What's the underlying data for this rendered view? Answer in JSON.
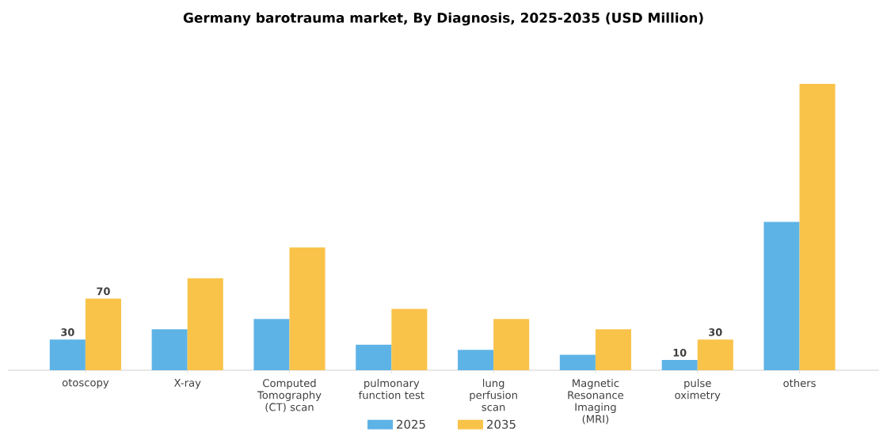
{
  "chart_data": {
    "type": "bar",
    "title": "Germany barotrauma market, By Diagnosis, 2025-2035 (USD Million)",
    "categories": [
      "otoscopy",
      "X-ray",
      "Computed Tomography (CT) scan",
      "pulmonary function test",
      "lung perfusion scan",
      "Magnetic Resonance Imaging (MRI)",
      "pulse oximetry",
      "others"
    ],
    "series": [
      {
        "name": "2025",
        "color": "#5DB3E6",
        "values": [
          30,
          40,
          50,
          25,
          20,
          15,
          10,
          145
        ],
        "value_labels": [
          "30",
          null,
          null,
          null,
          null,
          null,
          "10",
          null
        ]
      },
      {
        "name": "2035",
        "color": "#F9C34A",
        "values": [
          70,
          90,
          120,
          60,
          50,
          40,
          30,
          280
        ],
        "value_labels": [
          "70",
          null,
          null,
          null,
          null,
          null,
          "30",
          null
        ]
      }
    ],
    "legend": "bottom",
    "tick_labels": "x"
  }
}
